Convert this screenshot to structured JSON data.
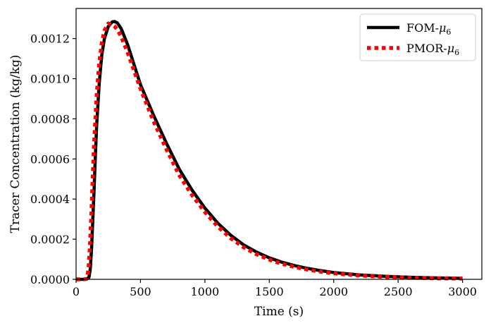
{
  "chart_data": {
    "type": "line",
    "xlabel": "Time (s)",
    "ylabel": "Tracer Concentration (kg/kg)",
    "xlim": [
      0,
      3150
    ],
    "ylim": [
      0,
      0.00135
    ],
    "xticks": [
      0,
      500,
      1000,
      1500,
      2000,
      2500,
      3000
    ],
    "yticks": [
      0.0,
      0.0002,
      0.0004,
      0.0006,
      0.0008,
      0.001,
      0.0012
    ],
    "xtick_labels": [
      "0",
      "500",
      "1000",
      "1500",
      "2000",
      "2500",
      "3000"
    ],
    "ytick_labels": [
      "0.0000",
      "0.0002",
      "0.0004",
      "0.0006",
      "0.0008",
      "0.0010",
      "0.0012"
    ],
    "grid": false,
    "legend_position": "top-right",
    "series": [
      {
        "name": "FOM-μ6",
        "label_base": "FOM-",
        "label_sub": "6",
        "color": "#000000",
        "style": "solid",
        "x": [
          0,
          80,
          100,
          110,
          120,
          130,
          140,
          150,
          160,
          180,
          200,
          220,
          250,
          280,
          300,
          320,
          350,
          400,
          450,
          500,
          600,
          700,
          800,
          900,
          1000,
          1100,
          1200,
          1300,
          1400,
          1500,
          1600,
          1700,
          1800,
          1900,
          2000,
          2200,
          2400,
          2600,
          2800,
          3000
        ],
        "y": [
          0,
          0,
          1e-05,
          5e-05,
          0.00015,
          0.0003,
          0.00045,
          0.00062,
          0.00077,
          0.00098,
          0.00112,
          0.0012,
          0.00126,
          0.001283,
          0.001285,
          0.001278,
          0.00125,
          0.00117,
          0.00107,
          0.00097,
          0.00082,
          0.00068,
          0.00055,
          0.000445,
          0.000355,
          0.00028,
          0.00022,
          0.000172,
          0.000136,
          0.000107,
          8.5e-05,
          6.8e-05,
          5.4e-05,
          4.3e-05,
          3.4e-05,
          2.2e-05,
          1.5e-05,
          1e-05,
          7e-06,
          5e-06
        ]
      },
      {
        "name": "PMOR-μ6",
        "label_base": "PMOR-",
        "label_sub": "6",
        "color": "#ff0000",
        "style": "dotted",
        "x": [
          0,
          60,
          80,
          90,
          100,
          110,
          120,
          130,
          140,
          160,
          180,
          200,
          220,
          250,
          280,
          300,
          320,
          350,
          400,
          450,
          500,
          600,
          700,
          800,
          900,
          1000,
          1100,
          1200,
          1300,
          1400,
          1500,
          1600,
          1700,
          1800,
          1900,
          2000,
          2200,
          2400,
          2600,
          2800,
          3000
        ],
        "y": [
          0,
          0,
          3e-06,
          2e-05,
          8e-05,
          0.0002,
          0.00035,
          0.00052,
          0.00068,
          0.00092,
          0.00108,
          0.00118,
          0.00124,
          0.001275,
          0.00127,
          0.00126,
          0.001245,
          0.00121,
          0.00113,
          0.00104,
          0.00095,
          0.00079,
          0.00065,
          0.00052,
          0.00042,
          0.000335,
          0.000263,
          0.000205,
          0.00016,
          0.000125,
          9.8e-05,
          7.7e-05,
          6.1e-05,
          4.8e-05,
          3.8e-05,
          3e-05,
          1.9e-05,
          1.2e-05,
          8e-06,
          5e-06,
          4e-06
        ]
      }
    ]
  }
}
